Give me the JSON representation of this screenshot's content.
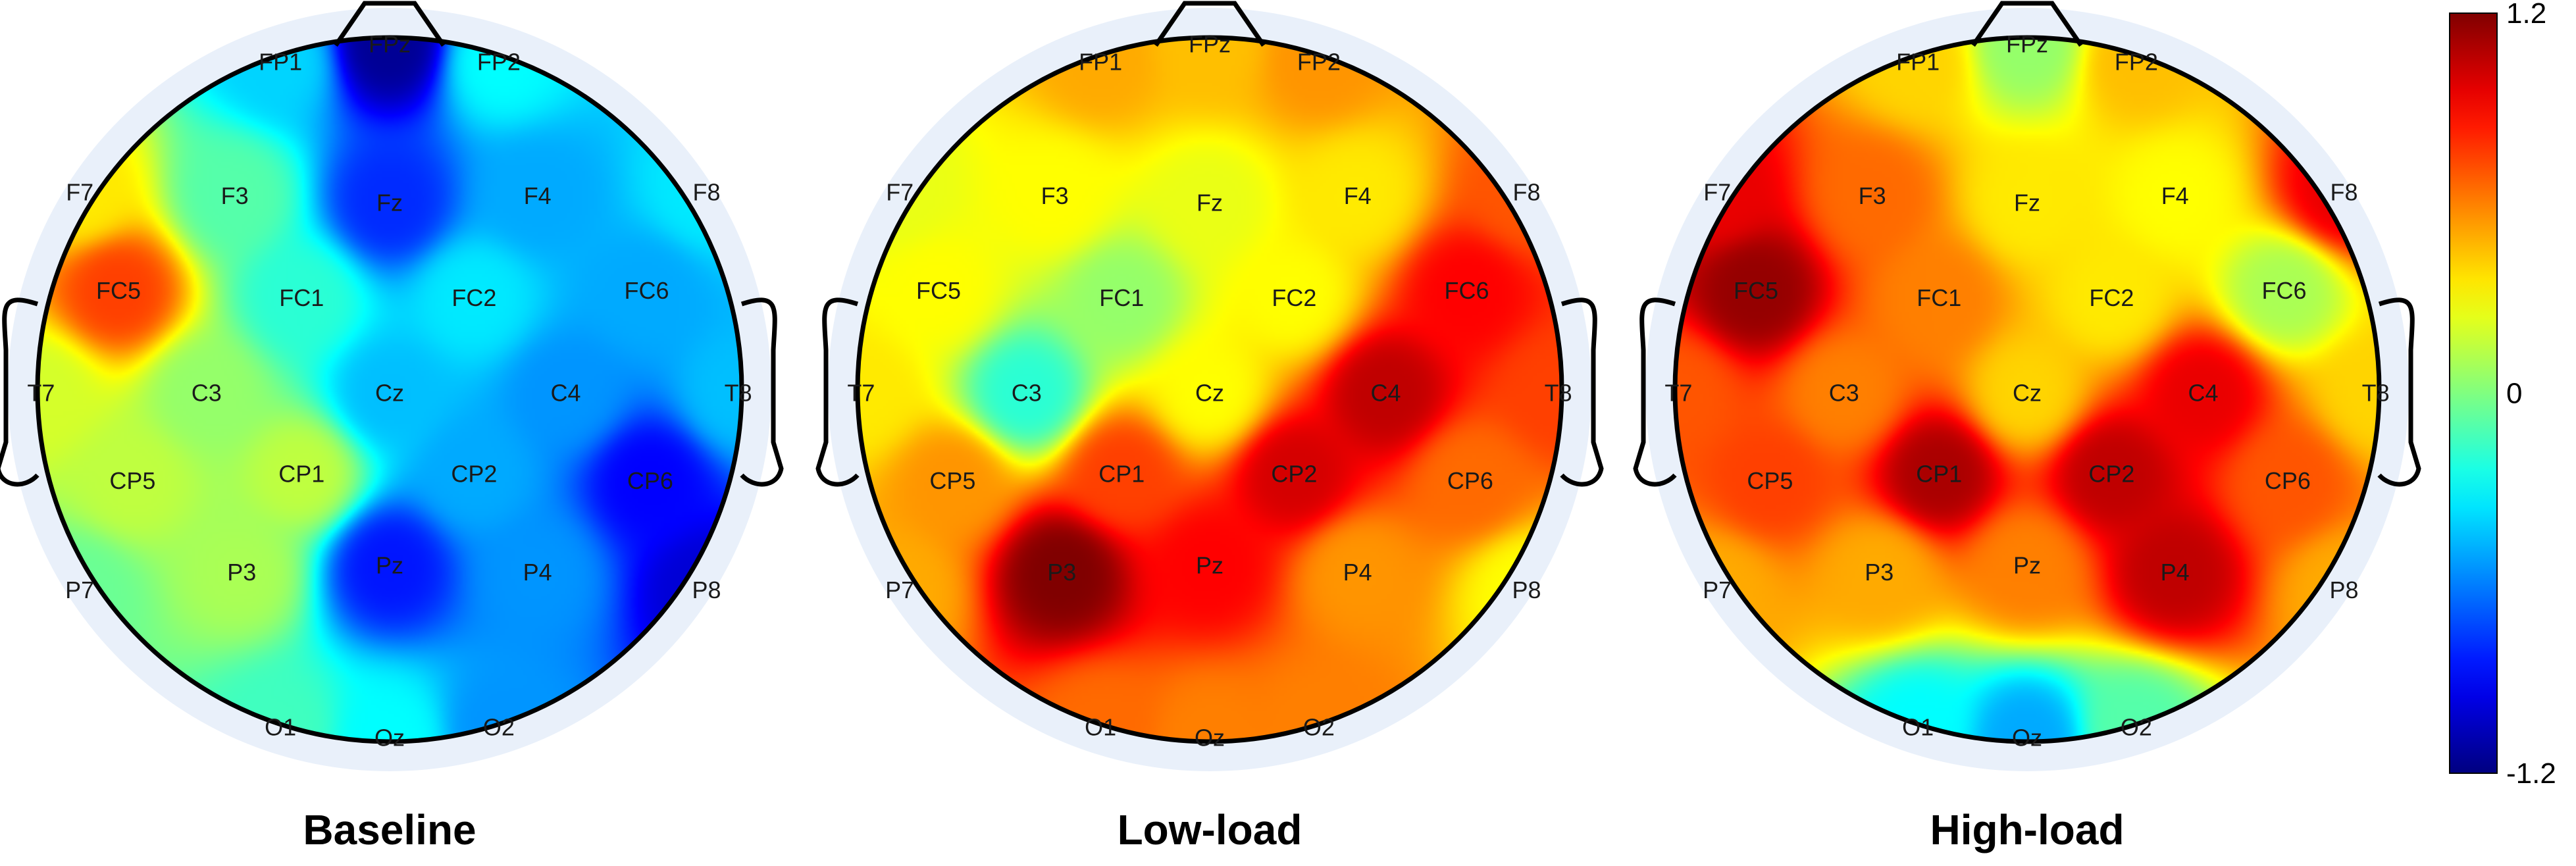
{
  "chart_data": {
    "type": "heatmap",
    "subtype": "scalp-topography",
    "color_scale": {
      "min": -1.2,
      "max": 1.2,
      "colormap": "jet",
      "tick_labels": [
        "1.2",
        "0",
        "-1.2"
      ],
      "tick_values": [
        1.2,
        0,
        -1.2
      ]
    },
    "electrode_labels": [
      "FP1",
      "FPz",
      "FP2",
      "F7",
      "F3",
      "Fz",
      "F4",
      "F8",
      "FC5",
      "FC1",
      "FC2",
      "FC6",
      "T7",
      "C3",
      "Cz",
      "C4",
      "T8",
      "CP5",
      "CP1",
      "CP2",
      "CP6",
      "P7",
      "P3",
      "Pz",
      "P4",
      "P8",
      "O1",
      "Oz",
      "O2"
    ],
    "panels": [
      {
        "title": "Baseline",
        "values": {
          "FP1": -0.4,
          "FPz": -1.15,
          "FP2": -0.3,
          "F7": 0.35,
          "F3": -0.1,
          "Fz": -0.8,
          "F4": -0.5,
          "F8": -0.35,
          "FC5": 0.75,
          "FC1": -0.2,
          "FC2": -0.35,
          "FC6": -0.5,
          "T7": 0.2,
          "C3": 0.05,
          "Cz": -0.45,
          "C4": -0.55,
          "T8": -0.45,
          "CP5": 0.15,
          "CP1": 0.15,
          "CP2": -0.5,
          "CP6": -0.9,
          "P7": -0.05,
          "P3": 0.1,
          "Pz": -0.85,
          "P4": -0.55,
          "P8": -1.0,
          "O1": -0.15,
          "Oz": -0.3,
          "O2": -0.55
        }
      },
      {
        "title": "Low-load",
        "values": {
          "FP1": 0.5,
          "FPz": 0.45,
          "FP2": 0.55,
          "F7": 0.25,
          "F3": 0.3,
          "Fz": 0.25,
          "F4": 0.35,
          "F8": 0.7,
          "FC5": 0.3,
          "FC1": 0.05,
          "FC2": 0.3,
          "FC6": 0.9,
          "T7": 0.35,
          "C3": -0.2,
          "Cz": 0.3,
          "C4": 1.05,
          "T8": 0.75,
          "CP5": 0.55,
          "CP1": 0.75,
          "CP2": 1.0,
          "CP6": 0.65,
          "P7": 0.5,
          "P3": 1.2,
          "Pz": 0.9,
          "P4": 0.55,
          "P8": 0.3,
          "O1": 0.65,
          "Oz": 0.6,
          "O2": 0.6
        }
      },
      {
        "title": "High-load",
        "values": {
          "FP1": 0.4,
          "FPz": 0.05,
          "FP2": 0.45,
          "F7": 0.95,
          "F3": 0.65,
          "Fz": 0.35,
          "F4": 0.3,
          "F8": 0.95,
          "FC5": 1.15,
          "FC1": 0.6,
          "FC2": 0.35,
          "FC6": 0.1,
          "T7": 0.7,
          "C3": 0.6,
          "Cz": 0.4,
          "C4": 0.95,
          "T8": 0.4,
          "CP5": 0.75,
          "CP1": 1.1,
          "CP2": 1.05,
          "CP6": 0.7,
          "P7": 0.5,
          "P3": 0.5,
          "Pz": 0.6,
          "P4": 1.05,
          "P8": 0.5,
          "O1": -0.3,
          "Oz": -0.5,
          "O2": -0.1
        }
      }
    ]
  }
}
